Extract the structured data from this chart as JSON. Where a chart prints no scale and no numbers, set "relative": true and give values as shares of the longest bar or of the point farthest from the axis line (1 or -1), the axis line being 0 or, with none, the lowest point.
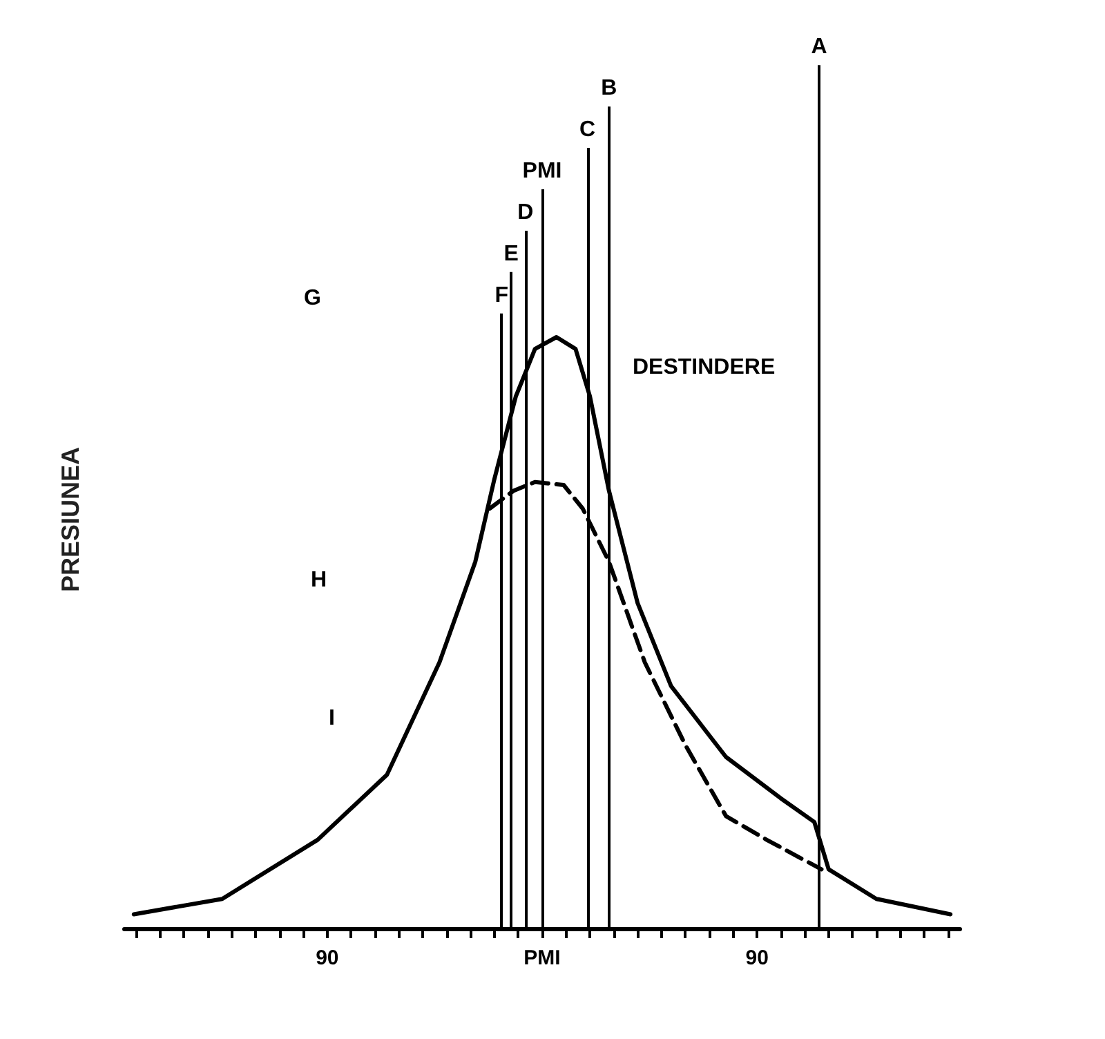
{
  "chart_data": {
    "type": "line",
    "relative": true,
    "ylabel": "PRESIUNEA",
    "xlim": [
      -175,
      175
    ],
    "xticks": [
      {
        "value": -170,
        "label": null
      },
      {
        "value": -160,
        "label": null
      },
      {
        "value": -150,
        "label": null
      },
      {
        "value": -140,
        "label": null
      },
      {
        "value": -130,
        "label": null
      },
      {
        "value": -120,
        "label": null
      },
      {
        "value": -110,
        "label": null
      },
      {
        "value": -100,
        "label": null
      },
      {
        "value": -90,
        "label": "90"
      },
      {
        "value": -80,
        "label": null
      },
      {
        "value": -70,
        "label": null
      },
      {
        "value": -60,
        "label": null
      },
      {
        "value": -50,
        "label": null
      },
      {
        "value": -40,
        "label": null
      },
      {
        "value": -30,
        "label": null
      },
      {
        "value": -20,
        "label": null
      },
      {
        "value": -10,
        "label": null
      },
      {
        "value": 0,
        "label": "PMI"
      },
      {
        "value": 10,
        "label": null
      },
      {
        "value": 20,
        "label": null
      },
      {
        "value": 30,
        "label": null
      },
      {
        "value": 40,
        "label": null
      },
      {
        "value": 50,
        "label": null
      },
      {
        "value": 60,
        "label": null
      },
      {
        "value": 70,
        "label": null
      },
      {
        "value": 80,
        "label": null
      },
      {
        "value": 90,
        "label": "90"
      },
      {
        "value": 100,
        "label": null
      },
      {
        "value": 110,
        "label": null
      },
      {
        "value": 120,
        "label": null
      },
      {
        "value": 130,
        "label": null
      },
      {
        "value": 140,
        "label": null
      },
      {
        "value": 150,
        "label": null
      },
      {
        "value": 160,
        "label": null
      },
      {
        "value": 170,
        "label": null
      }
    ],
    "grid": false,
    "marker": "none",
    "series": [
      {
        "color": "#000000",
        "line_style": "solid",
        "x": [
          -171,
          -134,
          -94,
          -65,
          -43,
          -28,
          -20,
          -11,
          -3,
          6,
          14,
          20,
          28,
          40,
          54,
          77,
          100,
          114,
          120,
          140,
          171
        ],
        "values": [
          0.024,
          0.05,
          0.15,
          0.26,
          0.45,
          0.62,
          0.76,
          0.9,
          0.98,
          1,
          0.98,
          0.9,
          0.74,
          0.55,
          0.41,
          0.29,
          0.22,
          0.18,
          0.1,
          0.05,
          0.024
        ]
      },
      {
        "color": "#000000",
        "line_style": "dashed",
        "x": [
          -22,
          -12,
          -3,
          9,
          17,
          28,
          43,
          60,
          77,
          94,
          117
        ],
        "values": [
          0.71,
          0.74,
          0.755,
          0.75,
          0.71,
          0.62,
          0.45,
          0.31,
          0.19,
          0.15,
          0.1
        ]
      }
    ],
    "ref_lines": [
      {
        "axis": "x",
        "value": 116,
        "label": "A"
      },
      {
        "axis": "x",
        "value": 28,
        "label": "B"
      },
      {
        "axis": "x",
        "value": 19,
        "label": "C"
      },
      {
        "axis": "x",
        "value": 0,
        "label": "PMI"
      },
      {
        "axis": "x",
        "value": -7,
        "label": "D"
      },
      {
        "axis": "x",
        "value": -13,
        "label": "E"
      },
      {
        "axis": "x",
        "value": -17,
        "label": "F"
      }
    ],
    "annotations": [
      "G",
      "H",
      "I",
      "DESTINDERE"
    ]
  }
}
